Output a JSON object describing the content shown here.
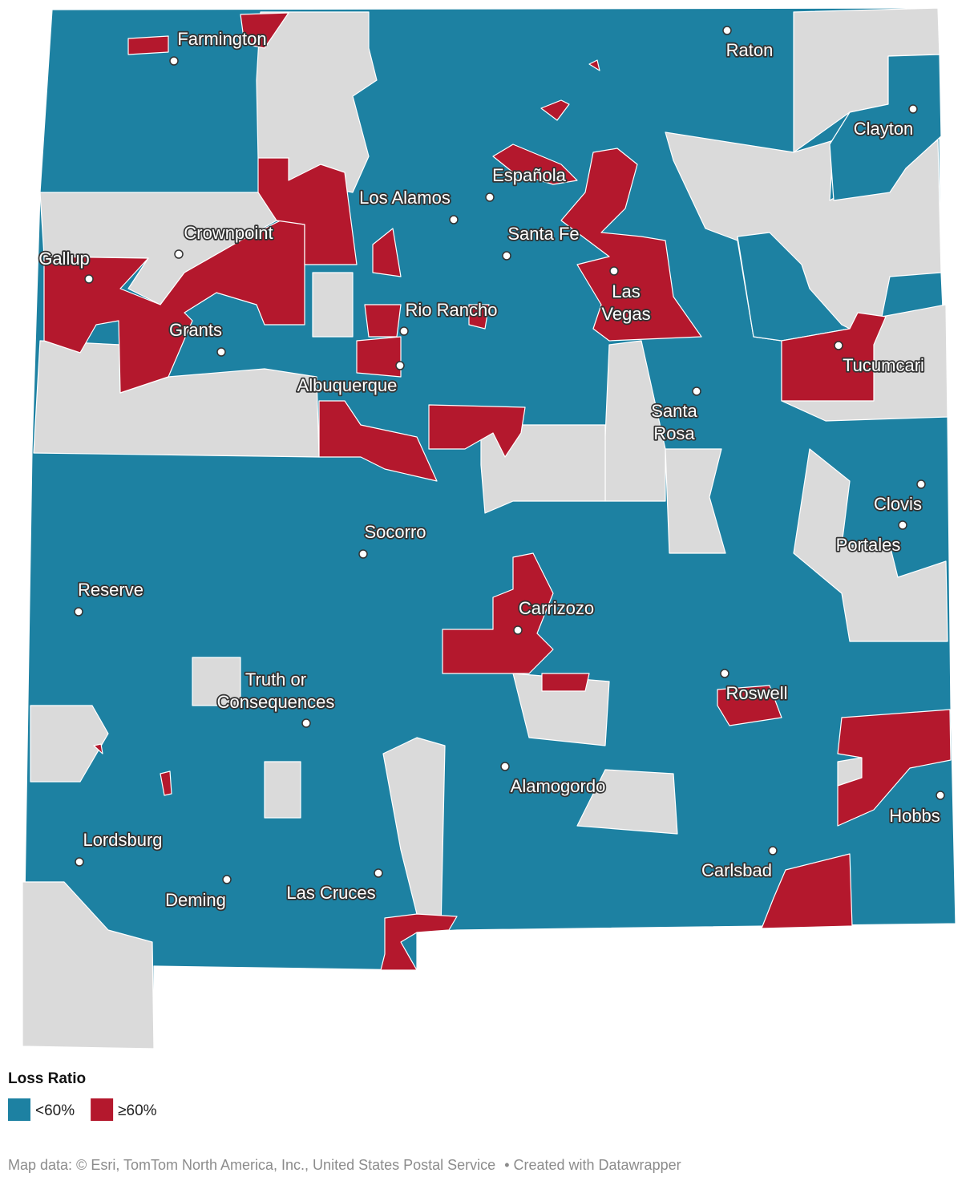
{
  "map": {
    "fill_other": "#dadada",
    "cities": [
      {
        "lines": [
          "Farmington"
        ]
      },
      {
        "lines": [
          "Raton"
        ]
      },
      {
        "lines": [
          "Clayton"
        ]
      },
      {
        "lines": [
          "Española"
        ]
      },
      {
        "lines": [
          "Los Alamos"
        ]
      },
      {
        "lines": [
          "Crownpoint"
        ]
      },
      {
        "lines": [
          "Santa Fe"
        ]
      },
      {
        "lines": [
          "Gallup"
        ]
      },
      {
        "lines": [
          "Las",
          "Vegas"
        ]
      },
      {
        "lines": [
          "Rio Rancho"
        ]
      },
      {
        "lines": [
          "Grants"
        ]
      },
      {
        "lines": [
          "Tucumcari"
        ]
      },
      {
        "lines": [
          "Albuquerque"
        ]
      },
      {
        "lines": [
          "Santa",
          "Rosa"
        ]
      },
      {
        "lines": [
          "Clovis"
        ]
      },
      {
        "lines": [
          "Socorro"
        ]
      },
      {
        "lines": [
          "Portales"
        ]
      },
      {
        "lines": [
          "Reserve"
        ]
      },
      {
        "lines": [
          "Carrizozo"
        ]
      },
      {
        "lines": [
          "Roswell"
        ]
      },
      {
        "lines": [
          "Truth or",
          "Consequences"
        ]
      },
      {
        "lines": [
          "Alamogordo"
        ]
      },
      {
        "lines": [
          "Hobbs"
        ]
      },
      {
        "lines": [
          "Lordsburg"
        ]
      },
      {
        "lines": [
          "Carlsbad"
        ]
      },
      {
        "lines": [
          "Deming"
        ]
      },
      {
        "lines": [
          "Las Cruces"
        ]
      }
    ]
  },
  "legend": {
    "title": "Loss Ratio",
    "items": [
      {
        "label": "<60%",
        "color": "#1d81a2"
      },
      {
        "label": "≥60%",
        "color": "#b4182d"
      }
    ]
  },
  "footer": {
    "source": "Map data: © Esri, TomTom North America, Inc., United States Postal Service",
    "credit": "• Created with Datawrapper"
  }
}
